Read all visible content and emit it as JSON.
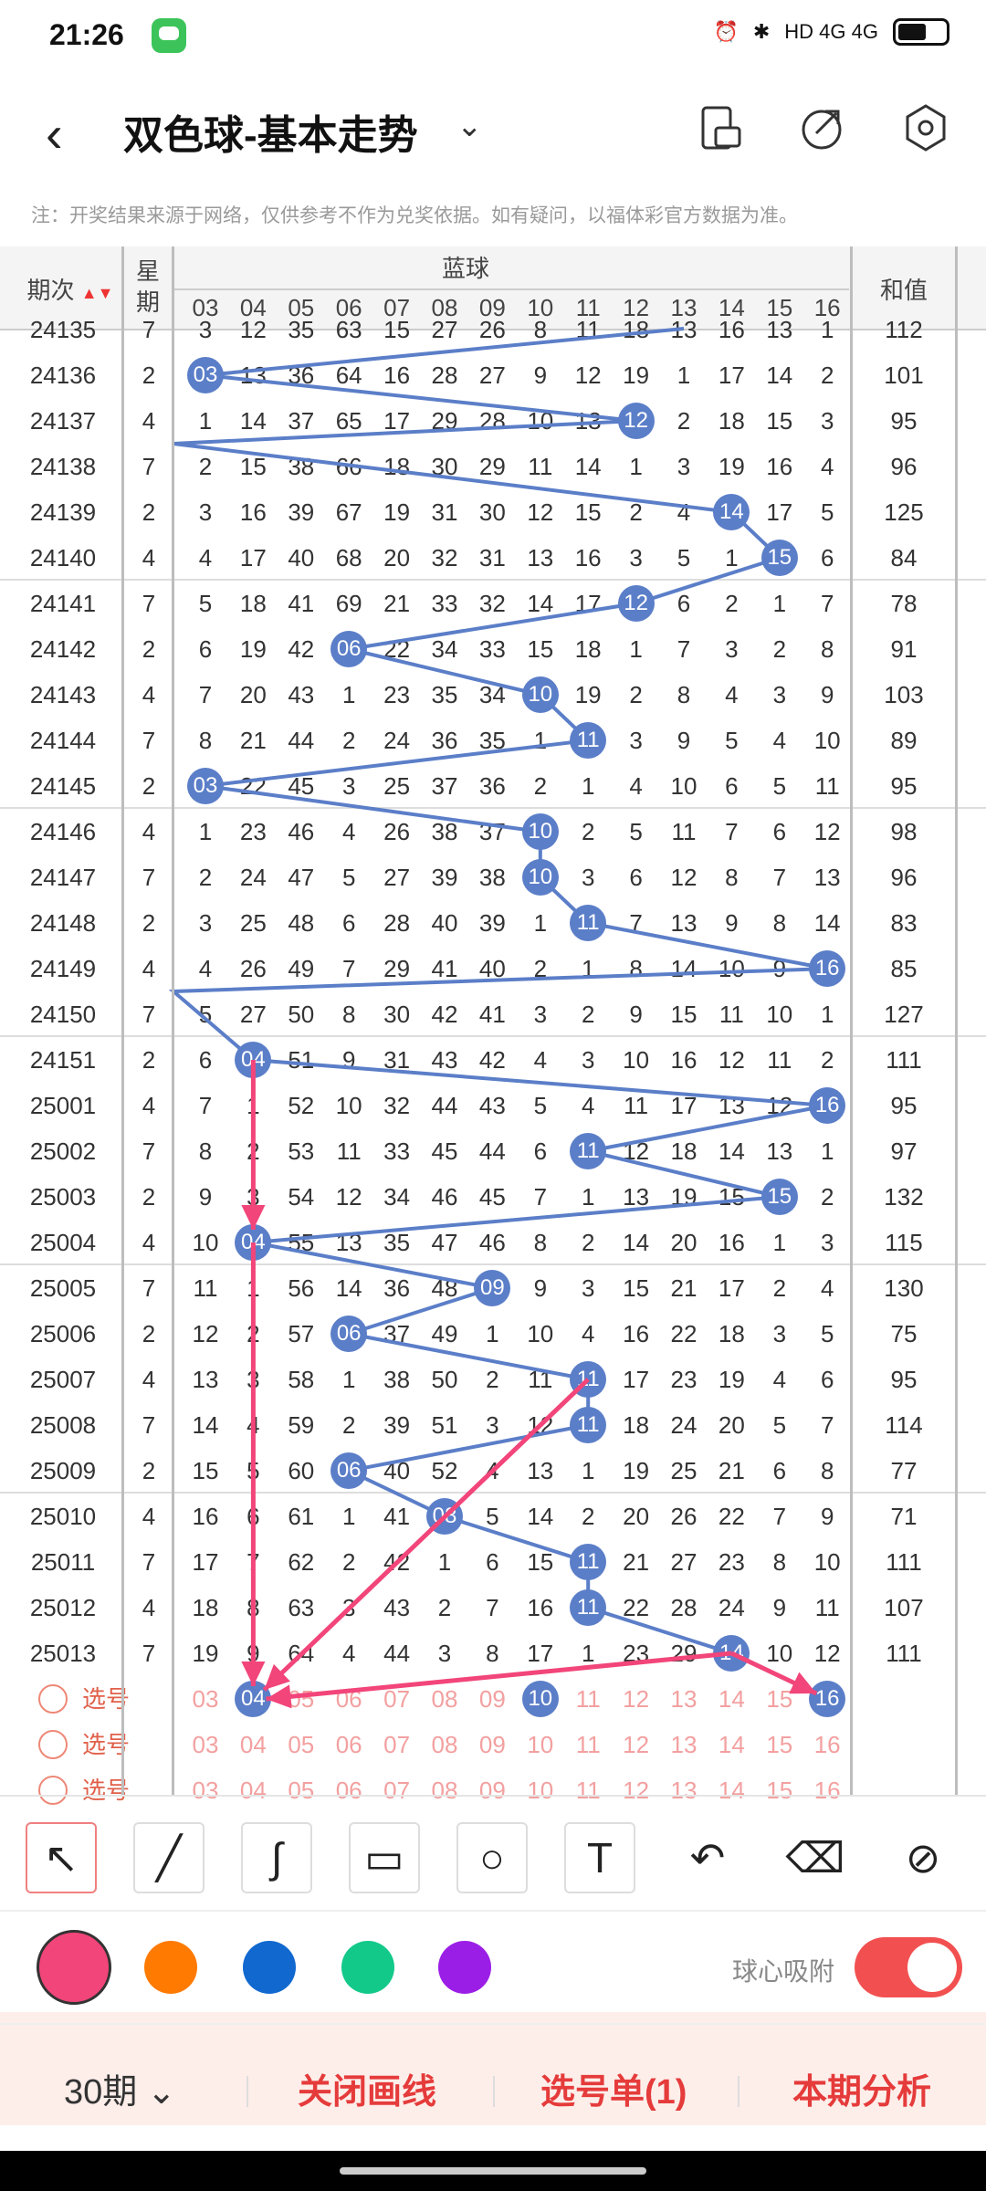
{
  "status": {
    "time": "21:26",
    "network": "HD 4G 4G"
  },
  "header": {
    "title": "双色球-基本走势"
  },
  "note": "注：开奖结果来源于网络，仅供参考不作为兑奖依据。如有疑问，以福体彩官方数据为准。",
  "table": {
    "col_period": "期次",
    "col_weekday": "星\n期",
    "col_blue": "蓝球",
    "col_sum": "和值",
    "blue_cols": [
      "03",
      "04",
      "05",
      "06",
      "07",
      "08",
      "09",
      "10",
      "11",
      "12",
      "13",
      "14",
      "15",
      "16"
    ],
    "rows": [
      {
        "period": "24136",
        "wd": "2",
        "vals": [
          "03",
          "13",
          "36",
          "64",
          "16",
          "28",
          "27",
          "9",
          "12",
          "19",
          "1",
          "17",
          "14",
          "2"
        ],
        "sum": "101"
      },
      {
        "period": "24137",
        "wd": "4",
        "vals": [
          "1",
          "14",
          "37",
          "65",
          "17",
          "29",
          "28",
          "10",
          "13",
          "12",
          "2",
          "18",
          "15",
          "3"
        ],
        "sum": "95"
      },
      {
        "period": "24138",
        "wd": "7",
        "vals": [
          "2",
          "15",
          "38",
          "66",
          "18",
          "30",
          "29",
          "11",
          "14",
          "1",
          "3",
          "19",
          "16",
          "4"
        ],
        "sum": "96"
      },
      {
        "period": "24139",
        "wd": "2",
        "vals": [
          "3",
          "16",
          "39",
          "67",
          "19",
          "31",
          "30",
          "12",
          "15",
          "2",
          "4",
          "14",
          "17",
          "5"
        ],
        "sum": "125"
      },
      {
        "period": "24140",
        "wd": "4",
        "vals": [
          "4",
          "17",
          "40",
          "68",
          "20",
          "32",
          "31",
          "13",
          "16",
          "3",
          "5",
          "1",
          "15",
          "6"
        ],
        "sum": "84"
      },
      {
        "period": "24141",
        "wd": "7",
        "vals": [
          "5",
          "18",
          "41",
          "69",
          "21",
          "33",
          "32",
          "14",
          "17",
          "12",
          "6",
          "2",
          "1",
          "7"
        ],
        "sum": "78"
      },
      {
        "period": "24142",
        "wd": "2",
        "vals": [
          "6",
          "19",
          "42",
          "06",
          "22",
          "34",
          "33",
          "15",
          "18",
          "1",
          "7",
          "3",
          "2",
          "8"
        ],
        "sum": "91"
      },
      {
        "period": "24143",
        "wd": "4",
        "vals": [
          "7",
          "20",
          "43",
          "1",
          "23",
          "35",
          "34",
          "10",
          "19",
          "2",
          "8",
          "4",
          "3",
          "9"
        ],
        "sum": "103"
      },
      {
        "period": "24144",
        "wd": "7",
        "vals": [
          "8",
          "21",
          "44",
          "2",
          "24",
          "36",
          "35",
          "1",
          "11",
          "3",
          "9",
          "5",
          "4",
          "10"
        ],
        "sum": "89"
      },
      {
        "period": "24145",
        "wd": "2",
        "vals": [
          "03",
          "22",
          "45",
          "3",
          "25",
          "37",
          "36",
          "2",
          "1",
          "4",
          "10",
          "6",
          "5",
          "11"
        ],
        "sum": "95"
      },
      {
        "period": "24146",
        "wd": "4",
        "vals": [
          "1",
          "23",
          "46",
          "4",
          "26",
          "38",
          "37",
          "10",
          "2",
          "5",
          "11",
          "7",
          "6",
          "12"
        ],
        "sum": "98"
      },
      {
        "period": "24147",
        "wd": "7",
        "vals": [
          "2",
          "24",
          "47",
          "5",
          "27",
          "39",
          "38",
          "10",
          "3",
          "6",
          "12",
          "8",
          "7",
          "13"
        ],
        "sum": "96"
      },
      {
        "period": "24148",
        "wd": "2",
        "vals": [
          "3",
          "25",
          "48",
          "6",
          "28",
          "40",
          "39",
          "1",
          "11",
          "7",
          "13",
          "9",
          "8",
          "14"
        ],
        "sum": "83"
      },
      {
        "period": "24149",
        "wd": "4",
        "vals": [
          "4",
          "26",
          "49",
          "7",
          "29",
          "41",
          "40",
          "2",
          "1",
          "8",
          "14",
          "10",
          "9",
          "16"
        ],
        "sum": "85"
      },
      {
        "period": "24150",
        "wd": "7",
        "vals": [
          "5",
          "27",
          "50",
          "8",
          "30",
          "42",
          "41",
          "3",
          "2",
          "9",
          "15",
          "11",
          "10",
          "1"
        ],
        "sum": "127"
      },
      {
        "period": "24151",
        "wd": "2",
        "vals": [
          "6",
          "04",
          "51",
          "9",
          "31",
          "43",
          "42",
          "4",
          "3",
          "10",
          "16",
          "12",
          "11",
          "2"
        ],
        "sum": "111"
      },
      {
        "period": "25001",
        "wd": "4",
        "vals": [
          "7",
          "1",
          "52",
          "10",
          "32",
          "44",
          "43",
          "5",
          "4",
          "11",
          "17",
          "13",
          "12",
          "16"
        ],
        "sum": "95"
      },
      {
        "period": "25002",
        "wd": "7",
        "vals": [
          "8",
          "2",
          "53",
          "11",
          "33",
          "45",
          "44",
          "6",
          "11",
          "12",
          "18",
          "14",
          "13",
          "1"
        ],
        "sum": "97"
      },
      {
        "period": "25003",
        "wd": "2",
        "vals": [
          "9",
          "3",
          "54",
          "12",
          "34",
          "46",
          "45",
          "7",
          "1",
          "13",
          "19",
          "15",
          "15",
          "2"
        ],
        "sum": "132"
      },
      {
        "period": "25004",
        "wd": "4",
        "vals": [
          "10",
          "04",
          "55",
          "13",
          "35",
          "47",
          "46",
          "8",
          "2",
          "14",
          "20",
          "16",
          "1",
          "3"
        ],
        "sum": "115"
      },
      {
        "period": "25005",
        "wd": "7",
        "vals": [
          "11",
          "1",
          "56",
          "14",
          "36",
          "48",
          "09",
          "9",
          "3",
          "15",
          "21",
          "17",
          "2",
          "4"
        ],
        "sum": "130"
      },
      {
        "period": "25006",
        "wd": "2",
        "vals": [
          "12",
          "2",
          "57",
          "06",
          "37",
          "49",
          "1",
          "10",
          "4",
          "16",
          "22",
          "18",
          "3",
          "5"
        ],
        "sum": "75"
      },
      {
        "period": "25007",
        "wd": "4",
        "vals": [
          "13",
          "3",
          "58",
          "1",
          "38",
          "50",
          "2",
          "11",
          "11",
          "17",
          "23",
          "19",
          "4",
          "6"
        ],
        "sum": "95"
      },
      {
        "period": "25008",
        "wd": "7",
        "vals": [
          "14",
          "4",
          "59",
          "2",
          "39",
          "51",
          "3",
          "12",
          "11",
          "18",
          "24",
          "20",
          "5",
          "7"
        ],
        "sum": "114"
      },
      {
        "period": "25009",
        "wd": "2",
        "vals": [
          "15",
          "5",
          "60",
          "06",
          "40",
          "52",
          "4",
          "13",
          "1",
          "19",
          "25",
          "21",
          "6",
          "8"
        ],
        "sum": "77"
      },
      {
        "period": "25010",
        "wd": "4",
        "vals": [
          "16",
          "6",
          "61",
          "1",
          "41",
          "08",
          "5",
          "14",
          "2",
          "20",
          "26",
          "22",
          "7",
          "9"
        ],
        "sum": "71"
      },
      {
        "period": "25011",
        "wd": "7",
        "vals": [
          "17",
          "7",
          "62",
          "2",
          "42",
          "1",
          "6",
          "15",
          "11",
          "21",
          "27",
          "23",
          "8",
          "10"
        ],
        "sum": "111"
      },
      {
        "period": "25012",
        "wd": "4",
        "vals": [
          "18",
          "8",
          "63",
          "3",
          "43",
          "2",
          "7",
          "16",
          "11",
          "22",
          "28",
          "24",
          "9",
          "11"
        ],
        "sum": "107"
      },
      {
        "period": "25013",
        "wd": "7",
        "vals": [
          "19",
          "9",
          "64",
          "4",
          "44",
          "3",
          "8",
          "17",
          "1",
          "23",
          "29",
          "14",
          "10",
          "12"
        ],
        "sum": "111"
      }
    ],
    "ball_idx": [
      0,
      9,
      -1,
      11,
      12,
      9,
      3,
      7,
      8,
      0,
      7,
      7,
      8,
      13,
      -2,
      1,
      13,
      8,
      12,
      1,
      6,
      3,
      8,
      8,
      3,
      5,
      8,
      8,
      11
    ],
    "partial_top": {
      "period": "24135",
      "wd": "7",
      "vals": [
        "3",
        "12",
        "35",
        "63",
        "15",
        "27",
        "26",
        "8",
        "11",
        "18",
        "13",
        "16",
        "13",
        "1"
      ],
      "sum": "112"
    },
    "pick_rows": [
      {
        "label": "选号",
        "selected": [
          "04",
          "10",
          "16"
        ]
      },
      {
        "label": "选号",
        "selected": []
      },
      {
        "label": "选号",
        "selected": []
      }
    ]
  },
  "tools": [
    "select-arrow-icon",
    "line-icon",
    "curve-icon",
    "rectangle-icon",
    "circle-icon",
    "text-icon",
    "undo-icon",
    "eraser-icon",
    "clear-icon"
  ],
  "colors": {
    "active": "#f2457a",
    "palette": [
      "#f2457a",
      "#ff7a00",
      "#1169d0",
      "#12c98a",
      "#9b1ee6"
    ],
    "ball": "#5b7ec8"
  },
  "snap_label": "球心吸附",
  "bottom": {
    "period": "30期",
    "close_line": "关闭画线",
    "pick_list": "选号单(1)",
    "analysis": "本期分析"
  }
}
